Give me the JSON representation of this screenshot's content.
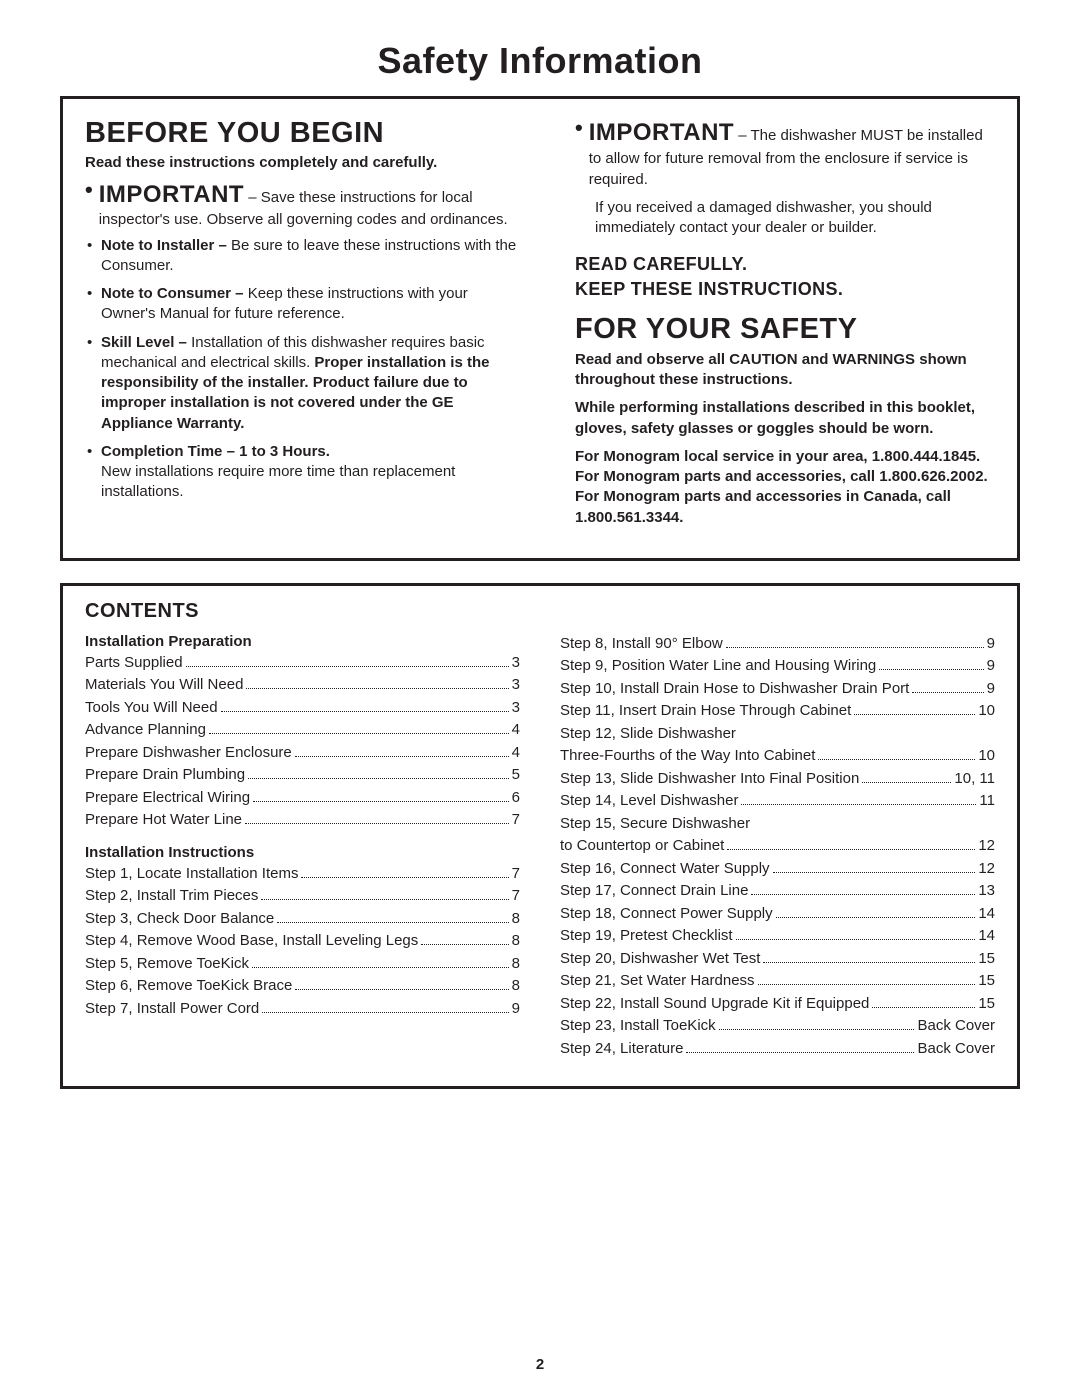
{
  "page_title": "Safety Information",
  "page_number": "2",
  "before": {
    "heading": "BEFORE YOU BEGIN",
    "subhead": "Read these instructions completely and carefully.",
    "important_lead": "IMPORTANT",
    "important_dash": " – ",
    "important_text": "Save these instructions for local inspector's use. Observe all governing codes and ordinances.",
    "bullets": [
      {
        "lead": "Note to Installer – ",
        "text": "Be sure to leave these instructions with the Consumer."
      },
      {
        "lead": "Note to Consumer – ",
        "text": "Keep these instructions with your Owner's Manual for future reference."
      },
      {
        "lead": "Skill Level – ",
        "text": "Installation of this dishwasher requires basic mechanical and electrical skills. ",
        "bold_tail": "Proper installation is the responsibility of the installer. Product failure due to improper installation is not covered under the GE Appliance Warranty."
      },
      {
        "lead": "Completion Time – ",
        "lead_tail": "1 to 3 Hours.",
        "text_below": "New installations require more time than replacement installations."
      }
    ]
  },
  "right": {
    "imp_lead": "IMPORTANT",
    "imp_dash": " – ",
    "imp_text": "The dishwasher MUST be installed to allow for future removal from the enclosure if service is required.",
    "imp_sub": "If you received a damaged dishwasher, you should immediately contact your dealer or builder.",
    "read_keep_1": "READ CAREFULLY.",
    "read_keep_2": "KEEP THESE INSTRUCTIONS.",
    "safety_heading": "FOR YOUR SAFETY",
    "p1": "Read and observe all CAUTION and WARNINGS shown throughout these instructions.",
    "p2": "While performing installations described in this booklet, gloves, safety glasses or goggles should be worn.",
    "p3": "For Monogram local service in your area, 1.800.444.1845. For Monogram parts and accessories, call 1.800.626.2002. For Monogram parts and accessories in Canada, call 1.800.561.3344."
  },
  "contents": {
    "title": "CONTENTS",
    "left": {
      "sec1": "Installation Preparation",
      "items1": [
        {
          "label": "Parts Supplied",
          "page": "3"
        },
        {
          "label": "Materials You Will Need",
          "page": "3"
        },
        {
          "label": "Tools You Will Need",
          "page": "3"
        },
        {
          "label": "Advance Planning",
          "page": "4"
        },
        {
          "label": "Prepare Dishwasher Enclosure",
          "page": "4"
        },
        {
          "label": "Prepare Drain Plumbing",
          "page": "5"
        },
        {
          "label": "Prepare Electrical Wiring",
          "page": "6"
        },
        {
          "label": "Prepare Hot Water Line",
          "page": "7"
        }
      ],
      "sec2": "Installation Instructions",
      "items2": [
        {
          "label": "Step 1, Locate Installation Items",
          "page": "7"
        },
        {
          "label": "Step 2, Install Trim Pieces",
          "page": "7"
        },
        {
          "label": "Step 3, Check Door Balance",
          "page": "8"
        },
        {
          "label": "Step 4, Remove Wood Base, Install Leveling Legs",
          "page": "8"
        },
        {
          "label": "Step 5, Remove ToeKick",
          "page": "8"
        },
        {
          "label": "Step 6, Remove ToeKick Brace",
          "page": "8"
        },
        {
          "label": "Step 7, Install Power Cord",
          "page": "9"
        }
      ]
    },
    "right": {
      "items": [
        {
          "label": "Step 8, Install 90° Elbow",
          "page": "9"
        },
        {
          "label": "Step 9, Position Water Line and Housing Wiring",
          "page": "9"
        },
        {
          "label": "Step 10, Install Drain Hose to Dishwasher Drain Port",
          "page": "9"
        },
        {
          "label": "Step 11, Insert Drain Hose Through Cabinet",
          "page": "10"
        },
        {
          "noline": "Step 12, Slide Dishwasher"
        },
        {
          "label": "Three-Fourths of the Way Into Cabinet",
          "page": "10"
        },
        {
          "label": "Step 13, Slide Dishwasher Into Final Position",
          "page": "10, 11"
        },
        {
          "label": "Step 14, Level Dishwasher",
          "page": "11"
        },
        {
          "noline": "Step 15, Secure Dishwasher"
        },
        {
          "label": "to Countertop or Cabinet",
          "page": "12"
        },
        {
          "label": "Step 16, Connect Water Supply",
          "page": "12"
        },
        {
          "label": "Step 17, Connect Drain Line",
          "page": "13"
        },
        {
          "label": "Step 18, Connect Power Supply",
          "page": "14"
        },
        {
          "label": "Step 19, Pretest Checklist",
          "page": "14"
        },
        {
          "label": "Step 20, Dishwasher Wet Test",
          "page": "15"
        },
        {
          "label": "Step 21, Set Water Hardness",
          "page": "15"
        },
        {
          "label": "Step 22, Install Sound Upgrade Kit if Equipped",
          "page": "15"
        },
        {
          "label": "Step 23, Install ToeKick",
          "page": "Back Cover"
        },
        {
          "label": "Step 24, Literature",
          "page": "Back Cover"
        }
      ]
    }
  }
}
